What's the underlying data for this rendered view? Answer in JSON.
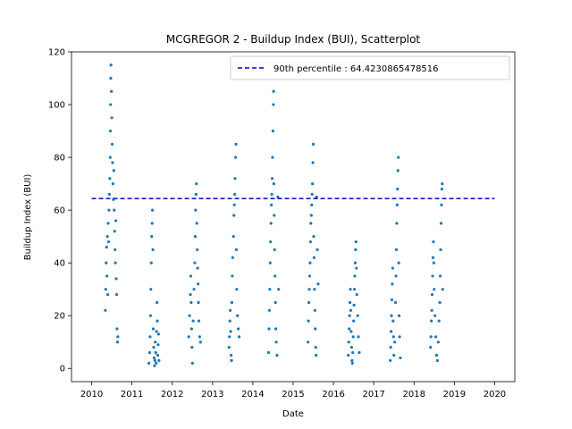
{
  "chart_data": {
    "type": "scatter",
    "title": "MCGREGOR 2 - Buildup Index (BUI), Scatterplot",
    "xlabel": "Date",
    "ylabel": "Buildup Index (BUI)",
    "xlim": [
      2009.5,
      2020.5
    ],
    "ylim": [
      -5,
      120
    ],
    "x_ticks": [
      2010,
      2011,
      2012,
      2013,
      2014,
      2015,
      2016,
      2017,
      2018,
      2019,
      2020
    ],
    "x_tick_labels": [
      "2010",
      "2011",
      "2012",
      "2013",
      "2014",
      "2015",
      "2016",
      "2017",
      "2018",
      "2019",
      "2020"
    ],
    "y_ticks": [
      0,
      20,
      40,
      60,
      80,
      100,
      120
    ],
    "y_tick_labels": [
      "0",
      "20",
      "40",
      "60",
      "80",
      "100",
      "120"
    ],
    "legend_position": "top-right",
    "reference_line": {
      "label": "90th percentile : 64.4230865478516",
      "y": 64.4230865478516,
      "x_range": [
        2010,
        2020
      ],
      "color": "#0000cc",
      "style": "dashed"
    },
    "point_color": "#1f77b4",
    "seasons": [
      {
        "x_start": 2010.33,
        "x_end": 2010.68,
        "points": [
          [
            2010.34,
            22
          ],
          [
            2010.35,
            30
          ],
          [
            2010.36,
            40
          ],
          [
            2010.37,
            46
          ],
          [
            2010.38,
            35
          ],
          [
            2010.39,
            50
          ],
          [
            2010.4,
            28
          ],
          [
            2010.41,
            55
          ],
          [
            2010.42,
            48
          ],
          [
            2010.43,
            60
          ],
          [
            2010.44,
            66
          ],
          [
            2010.45,
            72
          ],
          [
            2010.46,
            80
          ],
          [
            2010.465,
            90
          ],
          [
            2010.47,
            100
          ],
          [
            2010.475,
            110
          ],
          [
            2010.48,
            115
          ],
          [
            2010.49,
            105
          ],
          [
            2010.5,
            95
          ],
          [
            2010.51,
            85
          ],
          [
            2010.52,
            78
          ],
          [
            2010.53,
            70
          ],
          [
            2010.54,
            64
          ],
          [
            2010.55,
            75
          ],
          [
            2010.56,
            60
          ],
          [
            2010.57,
            52
          ],
          [
            2010.58,
            45
          ],
          [
            2010.59,
            40
          ],
          [
            2010.6,
            56
          ],
          [
            2010.61,
            34
          ],
          [
            2010.62,
            28
          ],
          [
            2010.63,
            15
          ],
          [
            2010.64,
            10
          ],
          [
            2010.65,
            12
          ]
        ]
      },
      {
        "x_start": 2011.4,
        "x_end": 2011.7,
        "points": [
          [
            2011.42,
            2
          ],
          [
            2011.44,
            6
          ],
          [
            2011.45,
            12
          ],
          [
            2011.46,
            20
          ],
          [
            2011.47,
            30
          ],
          [
            2011.48,
            40
          ],
          [
            2011.49,
            50
          ],
          [
            2011.5,
            55
          ],
          [
            2011.51,
            60
          ],
          [
            2011.52,
            45
          ],
          [
            2011.53,
            15
          ],
          [
            2011.54,
            8
          ],
          [
            2011.55,
            4
          ],
          [
            2011.56,
            1
          ],
          [
            2011.57,
            3
          ],
          [
            2011.58,
            10
          ],
          [
            2011.59,
            6
          ],
          [
            2011.6,
            2
          ],
          [
            2011.61,
            14
          ],
          [
            2011.62,
            25
          ],
          [
            2011.63,
            18
          ],
          [
            2011.64,
            5
          ],
          [
            2011.65,
            9
          ],
          [
            2011.66,
            13
          ],
          [
            2011.67,
            3
          ]
        ]
      },
      {
        "x_start": 2012.4,
        "x_end": 2012.72,
        "points": [
          [
            2012.41,
            12
          ],
          [
            2012.43,
            20
          ],
          [
            2012.45,
            28
          ],
          [
            2012.46,
            35
          ],
          [
            2012.47,
            25
          ],
          [
            2012.48,
            15
          ],
          [
            2012.49,
            8
          ],
          [
            2012.5,
            2
          ],
          [
            2012.52,
            18
          ],
          [
            2012.54,
            30
          ],
          [
            2012.56,
            40
          ],
          [
            2012.57,
            50
          ],
          [
            2012.58,
            60
          ],
          [
            2012.59,
            66
          ],
          [
            2012.6,
            70
          ],
          [
            2012.61,
            55
          ],
          [
            2012.62,
            45
          ],
          [
            2012.63,
            38
          ],
          [
            2012.64,
            32
          ],
          [
            2012.65,
            25
          ],
          [
            2012.66,
            18
          ],
          [
            2012.68,
            12
          ],
          [
            2012.7,
            10
          ]
        ]
      },
      {
        "x_start": 2013.4,
        "x_end": 2013.68,
        "points": [
          [
            2013.41,
            8
          ],
          [
            2013.42,
            12
          ],
          [
            2013.43,
            18
          ],
          [
            2013.44,
            22
          ],
          [
            2013.45,
            14
          ],
          [
            2013.46,
            5
          ],
          [
            2013.47,
            3
          ],
          [
            2013.48,
            25
          ],
          [
            2013.49,
            35
          ],
          [
            2013.5,
            42
          ],
          [
            2013.52,
            50
          ],
          [
            2013.53,
            58
          ],
          [
            2013.54,
            62
          ],
          [
            2013.55,
            66
          ],
          [
            2013.56,
            72
          ],
          [
            2013.57,
            80
          ],
          [
            2013.58,
            85
          ],
          [
            2013.59,
            45
          ],
          [
            2013.6,
            30
          ],
          [
            2013.62,
            20
          ],
          [
            2013.64,
            15
          ],
          [
            2013.66,
            12
          ]
        ]
      },
      {
        "x_start": 2014.38,
        "x_end": 2014.68,
        "points": [
          [
            2014.39,
            6
          ],
          [
            2014.4,
            15
          ],
          [
            2014.41,
            22
          ],
          [
            2014.42,
            30
          ],
          [
            2014.43,
            40
          ],
          [
            2014.44,
            48
          ],
          [
            2014.45,
            55
          ],
          [
            2014.46,
            62
          ],
          [
            2014.47,
            66
          ],
          [
            2014.48,
            72
          ],
          [
            2014.49,
            80
          ],
          [
            2014.5,
            90
          ],
          [
            2014.51,
            100
          ],
          [
            2014.515,
            105
          ],
          [
            2014.52,
            70
          ],
          [
            2014.53,
            58
          ],
          [
            2014.54,
            45
          ],
          [
            2014.55,
            35
          ],
          [
            2014.56,
            25
          ],
          [
            2014.57,
            15
          ],
          [
            2014.58,
            10
          ],
          [
            2014.6,
            5
          ],
          [
            2014.62,
            65
          ],
          [
            2014.64,
            30
          ]
        ]
      },
      {
        "x_start": 2015.36,
        "x_end": 2015.68,
        "points": [
          [
            2015.37,
            10
          ],
          [
            2015.38,
            18
          ],
          [
            2015.39,
            25
          ],
          [
            2015.4,
            30
          ],
          [
            2015.41,
            35
          ],
          [
            2015.42,
            40
          ],
          [
            2015.43,
            48
          ],
          [
            2015.44,
            55
          ],
          [
            2015.45,
            58
          ],
          [
            2015.46,
            62
          ],
          [
            2015.47,
            66
          ],
          [
            2015.48,
            70
          ],
          [
            2015.49,
            78
          ],
          [
            2015.5,
            85
          ],
          [
            2015.51,
            50
          ],
          [
            2015.52,
            42
          ],
          [
            2015.53,
            30
          ],
          [
            2015.54,
            22
          ],
          [
            2015.55,
            15
          ],
          [
            2015.56,
            8
          ],
          [
            2015.57,
            5
          ],
          [
            2015.58,
            65
          ],
          [
            2015.6,
            45
          ],
          [
            2015.62,
            32
          ]
        ]
      },
      {
        "x_start": 2016.36,
        "x_end": 2016.68,
        "points": [
          [
            2016.37,
            5
          ],
          [
            2016.38,
            10
          ],
          [
            2016.39,
            15
          ],
          [
            2016.4,
            20
          ],
          [
            2016.41,
            25
          ],
          [
            2016.42,
            30
          ],
          [
            2016.43,
            22
          ],
          [
            2016.44,
            14
          ],
          [
            2016.45,
            8
          ],
          [
            2016.46,
            3
          ],
          [
            2016.47,
            2
          ],
          [
            2016.48,
            6
          ],
          [
            2016.49,
            12
          ],
          [
            2016.5,
            18
          ],
          [
            2016.51,
            24
          ],
          [
            2016.52,
            30
          ],
          [
            2016.53,
            35
          ],
          [
            2016.54,
            40
          ],
          [
            2016.55,
            45
          ],
          [
            2016.56,
            48
          ],
          [
            2016.57,
            38
          ],
          [
            2016.58,
            28
          ],
          [
            2016.6,
            20
          ],
          [
            2016.62,
            12
          ],
          [
            2016.64,
            6
          ]
        ]
      },
      {
        "x_start": 2017.4,
        "x_end": 2017.68,
        "points": [
          [
            2017.41,
            3
          ],
          [
            2017.42,
            8
          ],
          [
            2017.43,
            14
          ],
          [
            2017.44,
            20
          ],
          [
            2017.45,
            26
          ],
          [
            2017.46,
            32
          ],
          [
            2017.47,
            38
          ],
          [
            2017.48,
            18
          ],
          [
            2017.49,
            12
          ],
          [
            2017.5,
            5
          ],
          [
            2017.52,
            10
          ],
          [
            2017.54,
            25
          ],
          [
            2017.55,
            35
          ],
          [
            2017.56,
            45
          ],
          [
            2017.57,
            55
          ],
          [
            2017.58,
            62
          ],
          [
            2017.59,
            68
          ],
          [
            2017.6,
            75
          ],
          [
            2017.61,
            80
          ],
          [
            2017.62,
            40
          ],
          [
            2017.63,
            20
          ],
          [
            2017.64,
            12
          ],
          [
            2017.66,
            4
          ]
        ]
      },
      {
        "x_start": 2018.4,
        "x_end": 2018.72,
        "points": [
          [
            2018.41,
            8
          ],
          [
            2018.42,
            12
          ],
          [
            2018.43,
            18
          ],
          [
            2018.44,
            22
          ],
          [
            2018.45,
            28
          ],
          [
            2018.46,
            35
          ],
          [
            2018.47,
            42
          ],
          [
            2018.48,
            48
          ],
          [
            2018.49,
            40
          ],
          [
            2018.5,
            30
          ],
          [
            2018.52,
            20
          ],
          [
            2018.54,
            12
          ],
          [
            2018.56,
            5
          ],
          [
            2018.58,
            3
          ],
          [
            2018.6,
            10
          ],
          [
            2018.62,
            18
          ],
          [
            2018.64,
            25
          ],
          [
            2018.65,
            35
          ],
          [
            2018.66,
            45
          ],
          [
            2018.67,
            55
          ],
          [
            2018.68,
            62
          ],
          [
            2018.69,
            68
          ],
          [
            2018.7,
            70
          ],
          [
            2018.71,
            30
          ]
        ]
      }
    ]
  }
}
